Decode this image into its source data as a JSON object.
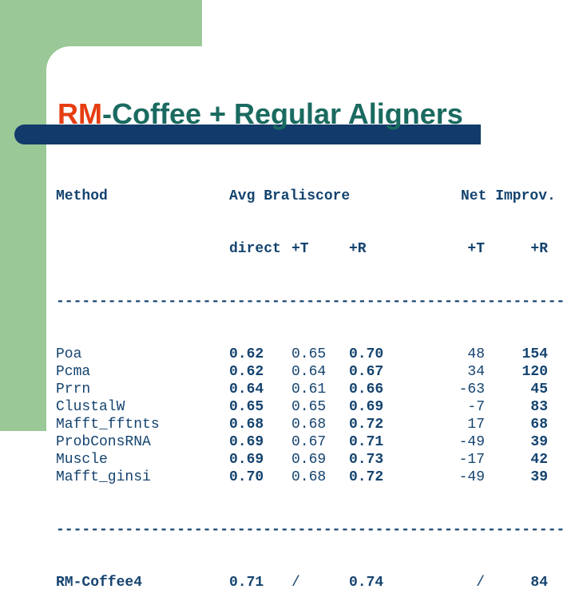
{
  "slide": {
    "title": {
      "accent": "RM",
      "rest": "-Coffee + Regular Aligners"
    },
    "colors": {
      "accent_red": "#e63d12",
      "title_teal": "#1a6a60",
      "navy_bar": "#123a6b",
      "table_text": "#14436f",
      "sidebar_green": "#9ac897",
      "background": "#ffffff"
    }
  },
  "table": {
    "header": {
      "method": "Method",
      "group1": "Avg Braliscore",
      "group2": "Net Improv.",
      "sub": {
        "direct": "direct",
        "plus_t": "+T",
        "plus_r": "+R",
        "net_plus_t": "+T",
        "net_plus_r": "+R"
      }
    },
    "divider": "-----------------------------------------------------------",
    "rows": [
      {
        "method": "Poa",
        "direct": "0.62",
        "plus_t": "0.65",
        "plus_r": "0.70",
        "net_t": "48",
        "net_r": "154"
      },
      {
        "method": "Pcma",
        "direct": "0.62",
        "plus_t": "0.64",
        "plus_r": "0.67",
        "net_t": "34",
        "net_r": "120"
      },
      {
        "method": "Prrn",
        "direct": "0.64",
        "plus_t": "0.61",
        "plus_r": "0.66",
        "net_t": "-63",
        "net_r": "45"
      },
      {
        "method": "ClustalW",
        "direct": "0.65",
        "plus_t": "0.65",
        "plus_r": "0.69",
        "net_t": "-7",
        "net_r": "83"
      },
      {
        "method": "Mafft_fftnts",
        "direct": "0.68",
        "plus_t": "0.68",
        "plus_r": "0.72",
        "net_t": "17",
        "net_r": "68"
      },
      {
        "method": "ProbConsRNA",
        "direct": "0.69",
        "plus_t": "0.67",
        "plus_r": "0.71",
        "net_t": "-49",
        "net_r": "39"
      },
      {
        "method": "Muscle",
        "direct": "0.69",
        "plus_t": "0.69",
        "plus_r": "0.73",
        "net_t": "-17",
        "net_r": "42"
      },
      {
        "method": "Mafft_ginsi",
        "direct": "0.70",
        "plus_t": "0.68",
        "plus_r": "0.72",
        "net_t": "-49",
        "net_r": "39"
      }
    ],
    "summary_row": {
      "method": "RM-Coffee4",
      "direct": "0.71",
      "plus_t": "/",
      "plus_r": "0.74",
      "net_t": "/",
      "net_r": "84"
    }
  }
}
